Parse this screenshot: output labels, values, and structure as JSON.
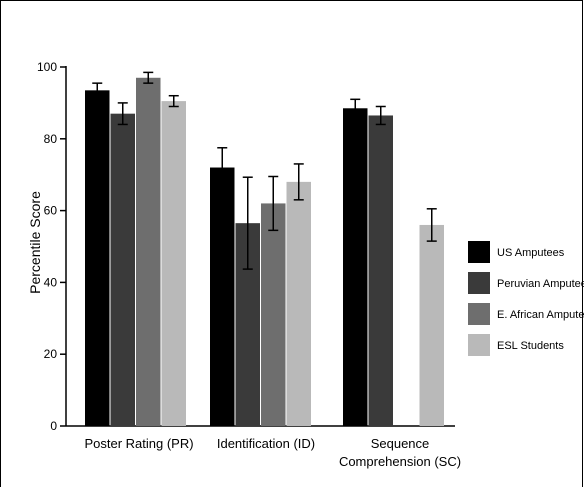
{
  "chart_data": {
    "type": "bar",
    "title": "",
    "xlabel": "",
    "ylabel": "Percentile Score",
    "ylim": [
      0,
      100
    ],
    "yticks": [
      0,
      20,
      40,
      60,
      80,
      100
    ],
    "grid": false,
    "legend_position": "right",
    "categories": [
      [
        "Poster Rating (PR)"
      ],
      [
        "Identification (ID)"
      ],
      [
        "Sequence",
        "Comprehension (SC)"
      ]
    ],
    "series": [
      {
        "name": "US Amputees",
        "color": "#000000",
        "values": [
          93.5,
          72,
          88.5
        ],
        "errors": [
          2,
          5.5,
          2.5
        ]
      },
      {
        "name": "Peruvian Amputees",
        "color": "#3a3a3a",
        "values": [
          87,
          56.5,
          86.5
        ],
        "errors": [
          3,
          12.8,
          2.5
        ]
      },
      {
        "name": "E. African Amputees",
        "color": "#6e6e6e",
        "values": [
          97,
          62,
          null
        ],
        "errors": [
          1.5,
          7.5,
          null
        ]
      },
      {
        "name": "ESL Students",
        "color": "#b9b9b9",
        "values": [
          90.5,
          68,
          56
        ],
        "errors": [
          1.5,
          5,
          4.5
        ]
      }
    ]
  }
}
